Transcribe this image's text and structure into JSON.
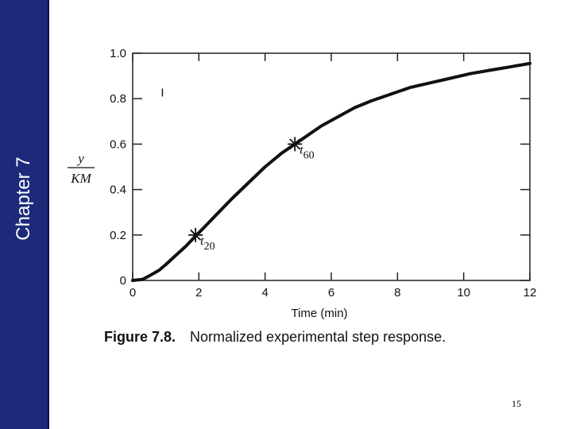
{
  "slide": {
    "chapter": "Chapter 7",
    "page_number": "15",
    "sidebar_color": "#1d2a7a"
  },
  "figure": {
    "label": "Figure 7.8.",
    "caption": "Normalized experimental step response."
  },
  "chart_data": {
    "type": "line",
    "xlabel": "Time (min)",
    "ylabel_numerator": "y",
    "ylabel_denominator": "KM",
    "xlim": [
      0,
      12
    ],
    "ylim": [
      0,
      1.0
    ],
    "xticks": [
      0,
      2,
      4,
      6,
      8,
      10,
      12
    ],
    "ytick_labels": [
      "0",
      "0.2",
      "0.4",
      "0.6",
      "0.8",
      "1.0"
    ],
    "ytick_values": [
      0,
      0.2,
      0.4,
      0.6,
      0.8,
      1.0
    ],
    "grid": false,
    "series": [
      {
        "x": [
          0,
          0.3,
          0.5,
          0.8,
          1.0,
          1.3,
          1.6,
          1.9,
          2.2,
          2.6,
          3.0,
          3.5,
          4.0,
          4.5,
          4.9,
          5.3,
          5.7,
          6.2,
          6.7,
          7.2,
          7.8,
          8.4,
          9.0,
          9.6,
          10.2,
          10.8,
          11.4,
          12.0
        ],
        "y": [
          0,
          0.005,
          0.02,
          0.045,
          0.07,
          0.11,
          0.15,
          0.195,
          0.24,
          0.3,
          0.36,
          0.43,
          0.5,
          0.56,
          0.6,
          0.64,
          0.68,
          0.72,
          0.76,
          0.79,
          0.82,
          0.85,
          0.87,
          0.89,
          0.91,
          0.925,
          0.94,
          0.955
        ]
      }
    ],
    "annotations": [
      {
        "base": "t",
        "sub": "20",
        "x": 1.9,
        "y": 0.2
      },
      {
        "base": "t",
        "sub": "60",
        "x": 4.9,
        "y": 0.6
      }
    ],
    "stray_mark": "I",
    "stray_mark_x": 0.9,
    "stray_mark_y": 0.81
  }
}
